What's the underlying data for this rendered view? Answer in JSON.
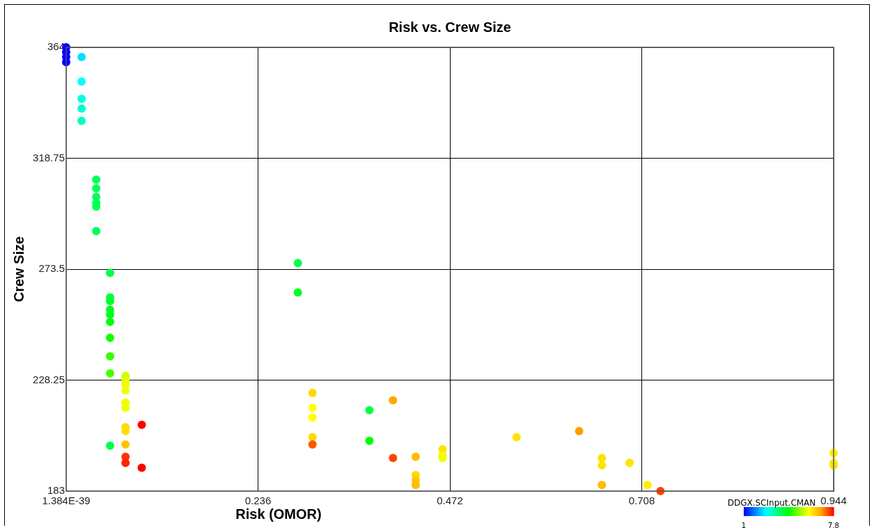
{
  "chart_data": {
    "type": "scatter",
    "title": "Risk vs. Crew Size",
    "xlabel": "Risk (OMOR)",
    "ylabel": "Crew Size",
    "clabel": "DDGX.SCInput.CMAN",
    "clim": [
      1,
      7.8
    ],
    "cticks": [
      1,
      7.8
    ],
    "xlim": [
      1.384e-39,
      0.944
    ],
    "xticks": [
      {
        "value": 1.384e-39,
        "label": "1.384E-39"
      },
      0.236,
      0.472,
      0.708,
      0.944
    ],
    "ylim": [
      183,
      364
    ],
    "yticks": [
      183,
      228.25,
      273.5,
      318.75,
      364
    ],
    "grid": true,
    "marker": "circle",
    "legend": false,
    "series": [
      {
        "type": "scatter",
        "x": [
          1.384e-39,
          1.384e-39,
          1.384e-39,
          1.384e-39,
          0.019,
          0.019,
          0.019,
          0.019,
          0.019,
          0.037,
          0.037,
          0.037,
          0.037,
          0.037,
          0.037,
          0.054,
          0.054,
          0.054,
          0.054,
          0.054,
          0.054,
          0.054,
          0.054,
          0.054,
          0.054,
          0.073,
          0.073,
          0.073,
          0.073,
          0.073,
          0.073,
          0.073,
          0.073,
          0.073,
          0.073,
          0.073,
          0.093,
          0.093,
          0.285,
          0.285,
          0.303,
          0.303,
          0.303,
          0.303,
          0.303,
          0.373,
          0.373,
          0.402,
          0.402,
          0.43,
          0.43,
          0.43,
          0.43,
          0.463,
          0.463,
          0.463,
          0.554,
          0.631,
          0.659,
          0.659,
          0.659,
          0.693,
          0.715,
          0.731,
          0.944,
          0.944,
          0.944
        ],
        "values": [
          364,
          362,
          360,
          358,
          360,
          350,
          343,
          339,
          334,
          310,
          306.5,
          303,
          300.5,
          299,
          289,
          272,
          262,
          260.5,
          257,
          255,
          252,
          245.5,
          238,
          231,
          201.5,
          230,
          228,
          226.5,
          224,
          219,
          217,
          209,
          207.5,
          202,
          197,
          194.5,
          210,
          192.5,
          276,
          264,
          223,
          217,
          213,
          205,
          202,
          216,
          203.5,
          220,
          196.5,
          197,
          189.5,
          187.5,
          185.5,
          200,
          197.5,
          196.5,
          205,
          207.5,
          196.5,
          193.5,
          185.5,
          194.5,
          185.5,
          183,
          198.5,
          194.5,
          193.5
        ],
        "cvalues": [
          1,
          1,
          1,
          1,
          2.5,
          2.7,
          2.9,
          3,
          3.1,
          3.8,
          3.8,
          3.8,
          3.8,
          3.8,
          3.8,
          3.9,
          4,
          4.1,
          4.2,
          4.2,
          4.3,
          4.5,
          4.7,
          4.8,
          3.9,
          5.6,
          5.7,
          5.8,
          5.8,
          5.8,
          5.8,
          6.3,
          6.2,
          6.5,
          7.5,
          7.6,
          7.8,
          7.8,
          3.9,
          4.2,
          6.3,
          5.9,
          5.9,
          6.3,
          7.3,
          3.9,
          4.4,
          6.8,
          7.4,
          6.6,
          6.3,
          6.5,
          6.6,
          6.2,
          5.8,
          5.8,
          6.2,
          6.9,
          6.2,
          6.2,
          6.6,
          6.2,
          6.1,
          7.4,
          6.1,
          6.1,
          6.2
        ]
      }
    ]
  }
}
